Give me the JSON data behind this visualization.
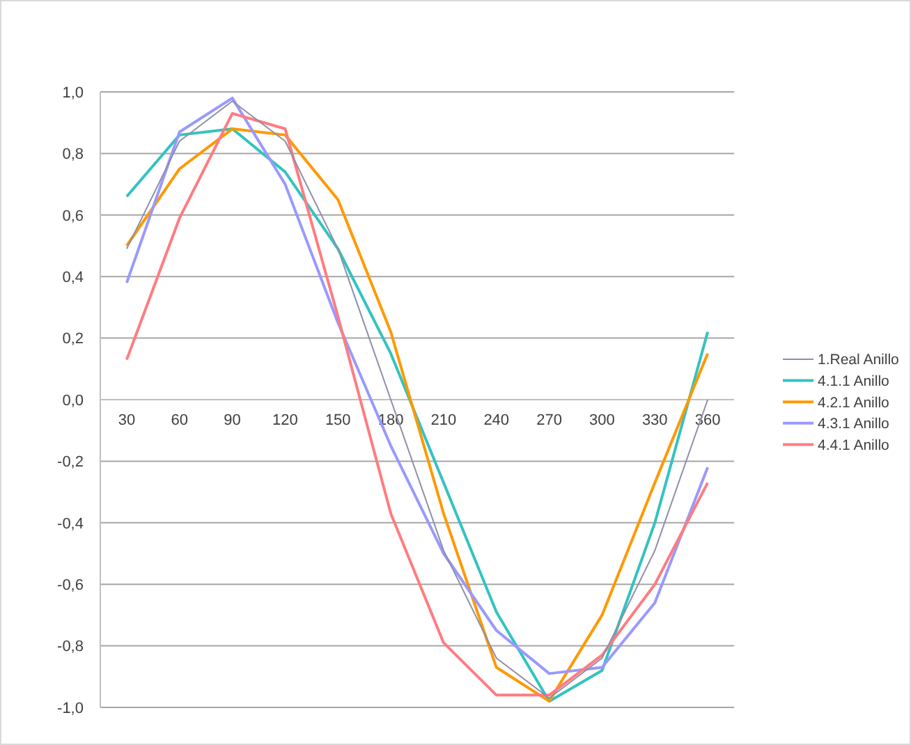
{
  "chart_data": {
    "type": "line",
    "categories": [
      "30",
      "60",
      "90",
      "120",
      "150",
      "180",
      "210",
      "240",
      "270",
      "300",
      "330",
      "360"
    ],
    "ylim": [
      -1,
      1
    ],
    "yticks": [
      {
        "value": -1,
        "label": "-1,0"
      },
      {
        "value": -0.8,
        "label": "-0,8"
      },
      {
        "value": -0.6,
        "label": "-0,6"
      },
      {
        "value": -0.4,
        "label": "-0,4"
      },
      {
        "value": -0.2,
        "label": "-0,2"
      },
      {
        "value": 0,
        "label": "0,0"
      },
      {
        "value": 0.2,
        "label": "0,2"
      },
      {
        "value": 0.4,
        "label": "0,4"
      },
      {
        "value": 0.6,
        "label": "0,6"
      },
      {
        "value": 0.8,
        "label": "0,8"
      },
      {
        "value": 1,
        "label": "1,0"
      }
    ],
    "grid": "y",
    "legend": "right",
    "marker": "none",
    "line_style": "solid",
    "series": [
      {
        "name": "1.Real Anillo",
        "color": "#8e8ea8",
        "values": [
          0.49,
          0.84,
          0.97,
          0.84,
          0.49,
          0.0,
          -0.49,
          -0.84,
          -0.97,
          -0.84,
          -0.49,
          0.0
        ]
      },
      {
        "name": "4.1.1 Anillo",
        "color": "#33c3c0",
        "values": [
          0.66,
          0.86,
          0.88,
          0.74,
          0.49,
          0.15,
          -0.27,
          -0.69,
          -0.98,
          -0.88,
          -0.4,
          0.22
        ]
      },
      {
        "name": "4.2.1 Anillo",
        "color": "#ff9900",
        "values": [
          0.5,
          0.75,
          0.88,
          0.86,
          0.65,
          0.22,
          -0.37,
          -0.87,
          -0.98,
          -0.7,
          -0.27,
          0.15
        ]
      },
      {
        "name": "4.3.1 Anillo",
        "color": "#9999ff",
        "values": [
          0.38,
          0.87,
          0.98,
          0.7,
          0.25,
          -0.15,
          -0.5,
          -0.75,
          -0.89,
          -0.87,
          -0.66,
          -0.22
        ]
      },
      {
        "name": "4.4.1 Anillo",
        "color": "#ff7c80",
        "values": [
          0.13,
          0.59,
          0.93,
          0.88,
          0.27,
          -0.37,
          -0.79,
          -0.96,
          -0.96,
          -0.83,
          -0.6,
          -0.27
        ]
      }
    ]
  }
}
